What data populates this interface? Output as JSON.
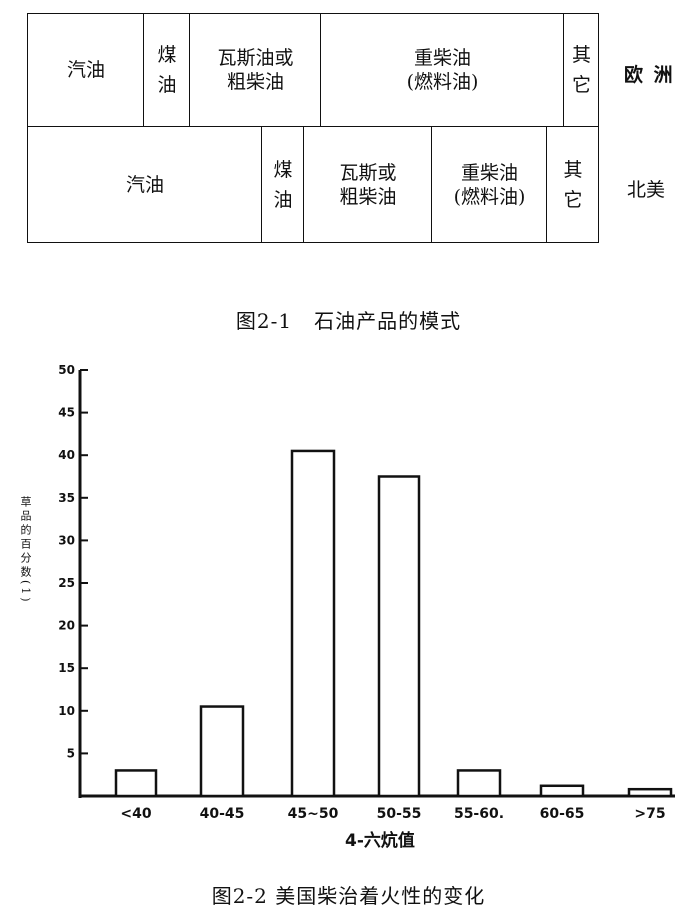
{
  "figure1": {
    "rows": [
      {
        "region": "欧 洲",
        "cells": [
          "汽油",
          "煤\n油",
          "瓦斯油或\n粗柴油",
          "重柴油\n(燃料油)",
          "其\n它"
        ]
      },
      {
        "region": "北美",
        "cells": [
          "汽油",
          "煤\n油",
          "瓦斯或\n粗柴油",
          "重柴油\n(燃料油)",
          "其\n它"
        ]
      }
    ],
    "caption": "图2-1   石油产品的模式"
  },
  "figure2": {
    "caption": "图2-2  美国柴治着火性的变化",
    "ylabel": "草品的百分数(1)",
    "xlabel": "4-六炕值"
  },
  "chart_data": {
    "type": "bar",
    "categories": [
      "<40",
      "40-45",
      "45~50",
      "50-55",
      "55-60.",
      "60-65",
      ">75"
    ],
    "values": [
      3,
      10.5,
      40.5,
      37.5,
      3,
      1.2,
      0.8
    ],
    "y_ticks": [
      "5",
      "10",
      "15",
      "20",
      "25",
      "30",
      "35",
      "40",
      "45",
      "50"
    ],
    "ylim": [
      0,
      50
    ],
    "xlabel": "4-六炕值",
    "ylabel": "草品的百分数(1)",
    "grid": false
  }
}
